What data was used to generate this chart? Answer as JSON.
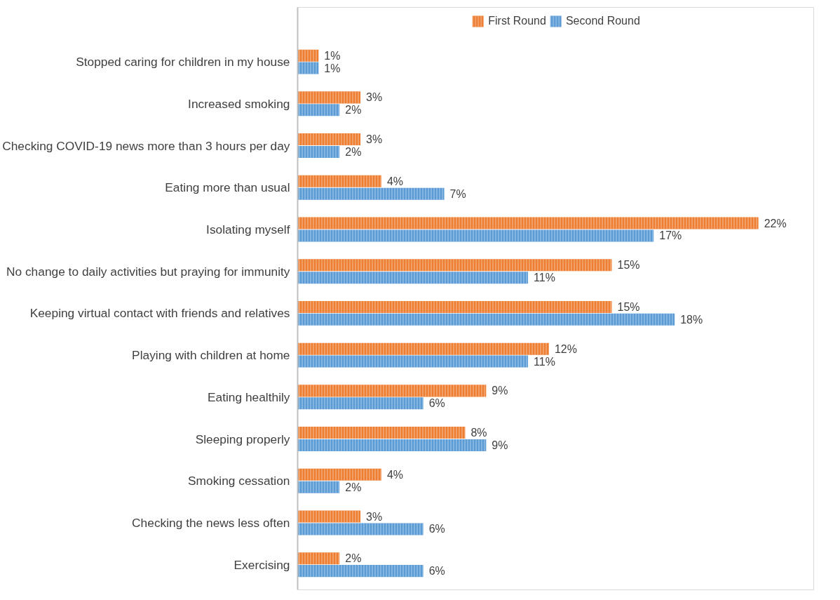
{
  "chart_data": {
    "type": "bar",
    "orientation": "horizontal",
    "legend": "top",
    "grid": false,
    "tick_labels": "y",
    "categories": [
      "Stopped caring for children in my house",
      "Increased smoking",
      "Checking COVID-19 news more than 3 hours per day",
      "Eating more than usual",
      "Isolating myself",
      "No change to daily activities but praying for immunity",
      "Keeping virtual contact with friends and relatives",
      "Playing with children at home",
      "Eating healthily",
      "Sleeping properly",
      "Smoking cessation",
      "Checking the news less often",
      "Exercising"
    ],
    "series": [
      {
        "name": "First Round",
        "color": "#ed7d31",
        "values": [
          1,
          3,
          3,
          4,
          22,
          15,
          15,
          12,
          9,
          8,
          4,
          3,
          2
        ],
        "value_labels": [
          "1%",
          "3%",
          "3%",
          "4%",
          "22%",
          "15%",
          "15%",
          "12%",
          "9%",
          "8%",
          "4%",
          "3%",
          "2%"
        ]
      },
      {
        "name": "Second Round",
        "color": "#5b9bd5",
        "values": [
          1,
          2,
          2,
          7,
          17,
          11,
          18,
          11,
          6,
          9,
          2,
          6,
          6
        ],
        "value_labels": [
          "1%",
          "2%",
          "2%",
          "7%",
          "17%",
          "11%",
          "18%",
          "11%",
          "6%",
          "9%",
          "2%",
          "6%",
          "6%"
        ]
      }
    ]
  }
}
